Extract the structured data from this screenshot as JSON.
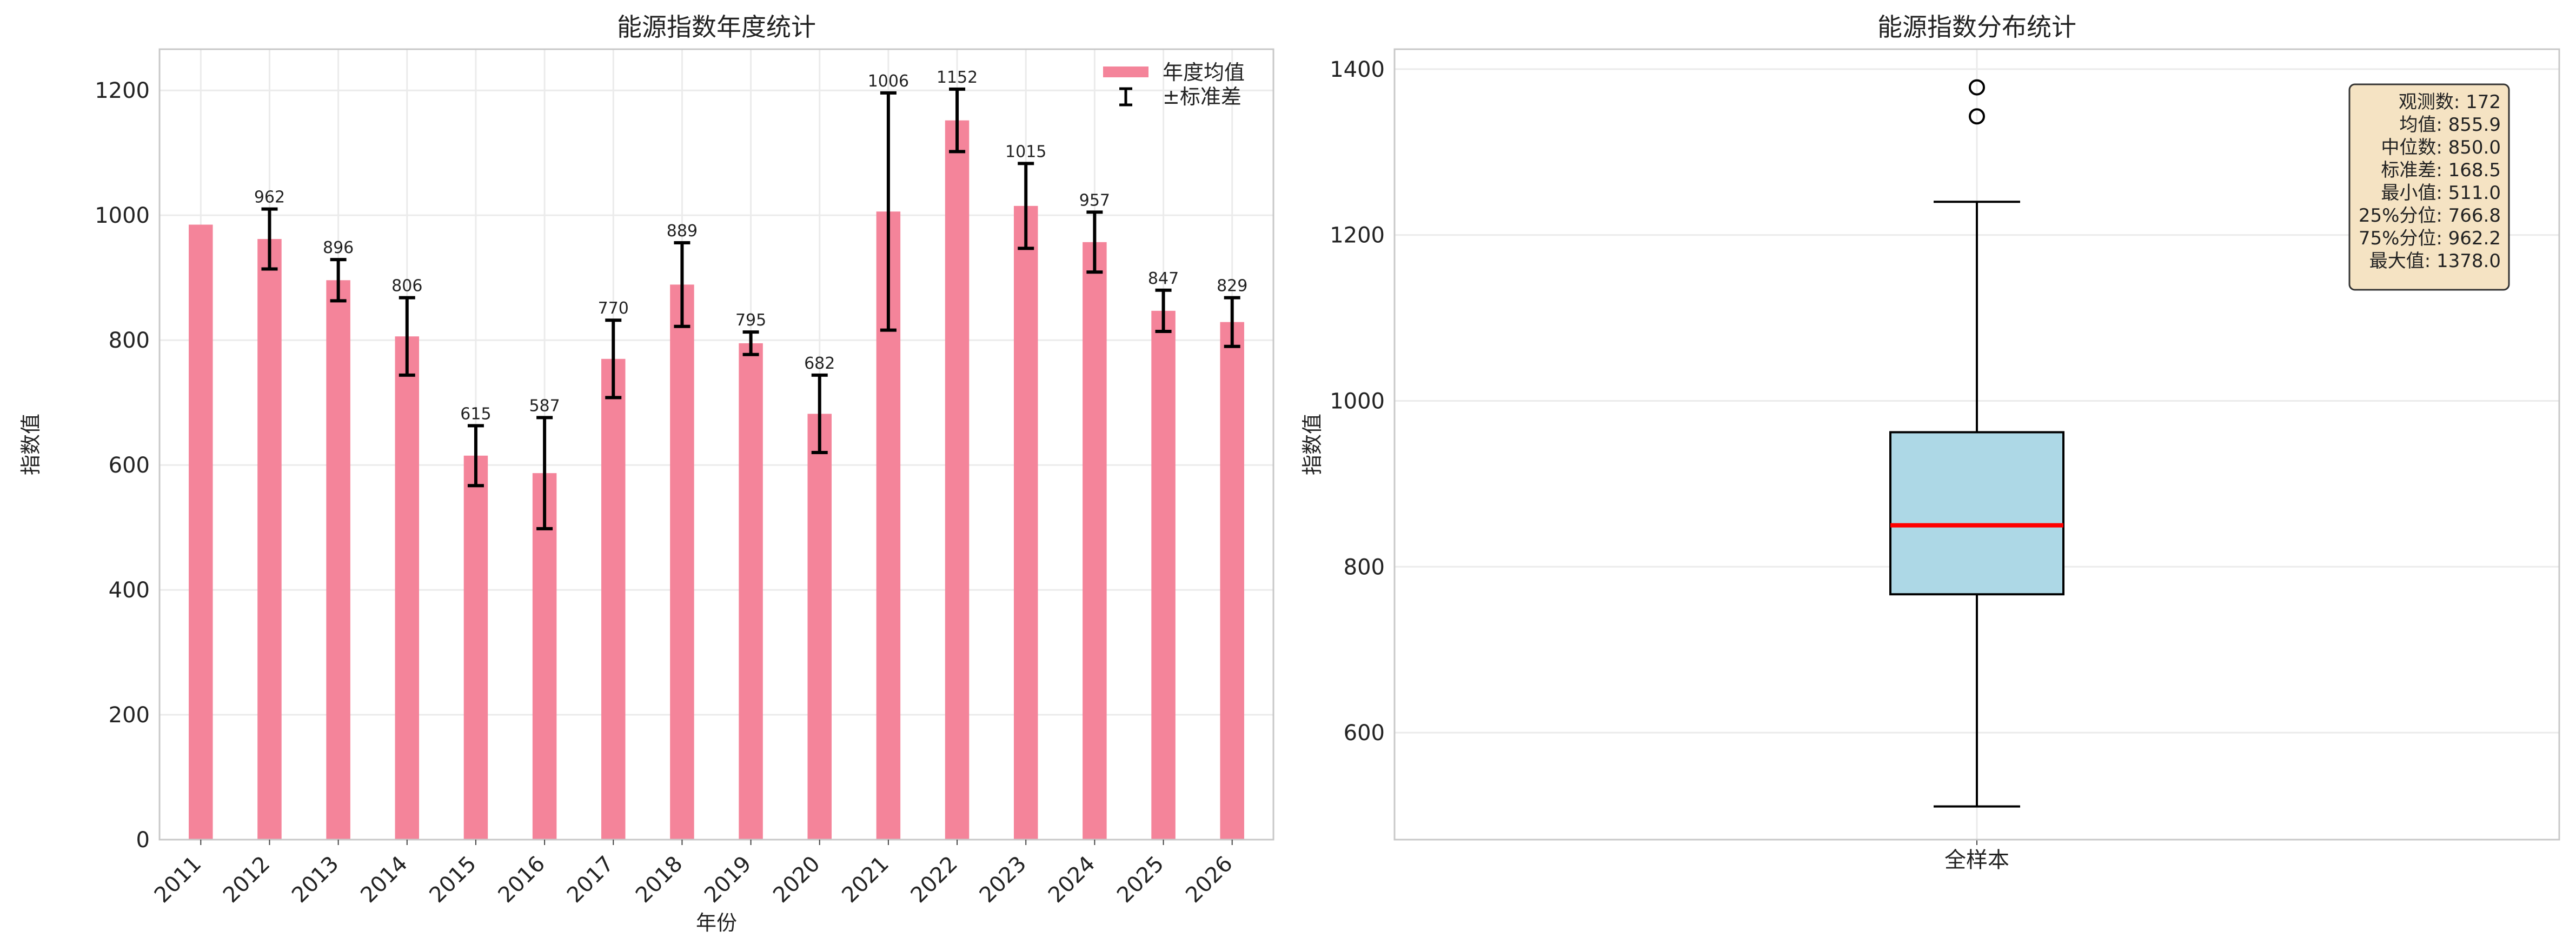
{
  "colors": {
    "bar": "#f4849a",
    "box": "#add8e6",
    "median": "#ff0000",
    "statsbox": "#f5e3c3",
    "grid": "#ebebeb"
  },
  "chart_data": [
    {
      "type": "bar",
      "title": "能源指数年度统计",
      "xlabel": "年份",
      "ylabel": "指数值",
      "ylim": [
        0,
        1266
      ],
      "yticks": [
        0,
        200,
        400,
        600,
        800,
        1000,
        1200
      ],
      "grid": true,
      "legend": {
        "placement": "top-right",
        "entries": [
          "年度均值",
          "±标准差"
        ]
      },
      "categories": [
        "2011",
        "2012",
        "2013",
        "2014",
        "2015",
        "2016",
        "2017",
        "2018",
        "2019",
        "2020",
        "2021",
        "2022",
        "2023",
        "2024",
        "2025",
        "2026"
      ],
      "values": [
        985,
        962,
        896,
        806,
        615,
        587,
        770,
        889,
        795,
        682,
        1006,
        1152,
        1015,
        957,
        847,
        829
      ],
      "errors": [
        null,
        48,
        33,
        62,
        48,
        89,
        62,
        67,
        18,
        62,
        190,
        50,
        68,
        48,
        33,
        39
      ],
      "data_labels": [
        "",
        "962",
        "896",
        "806",
        "615",
        "587",
        "770",
        "889",
        "795",
        "682",
        "1006",
        "1152",
        "1015",
        "957",
        "847",
        "829"
      ]
    },
    {
      "type": "box",
      "title": "能源指数分布统计",
      "xlabel": "",
      "ylabel": "指数值",
      "category": "全样本",
      "ylim": [
        471,
        1424
      ],
      "yticks": [
        600,
        800,
        1000,
        1200,
        1400
      ],
      "grid": true,
      "whisker_low": 511,
      "q1": 766.8,
      "median": 850.0,
      "q3": 962.2,
      "whisker_high": 1240,
      "outliers": [
        1343,
        1378
      ],
      "stats_box": {
        "placement": "top-right",
        "lines": [
          "观测数: 172",
          "均值: 855.9",
          "中位数: 850.0",
          "标准差: 168.5",
          "最小值: 511.0",
          "25%分位: 766.8",
          "75%分位: 962.2",
          "最大值: 1378.0"
        ]
      }
    }
  ]
}
